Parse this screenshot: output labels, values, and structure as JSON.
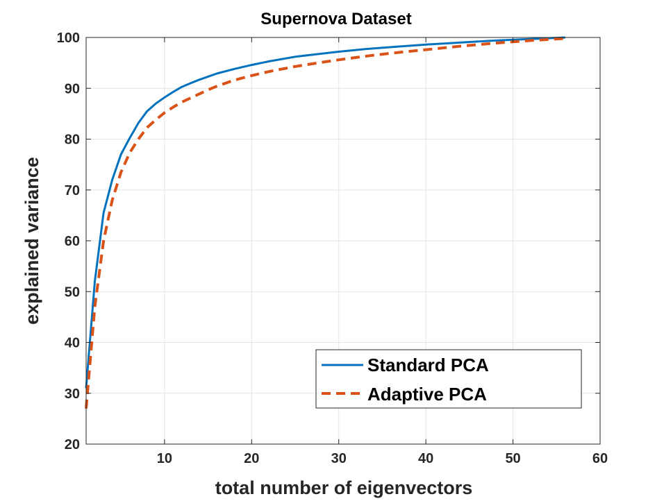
{
  "chart_data": {
    "type": "line",
    "title": "Supernova Dataset",
    "xlabel": "total number of eigenvectors",
    "ylabel": "explained variance",
    "xlim": [
      1,
      60
    ],
    "ylim": [
      20,
      100
    ],
    "xticks": [
      10,
      20,
      30,
      40,
      50,
      60
    ],
    "yticks": [
      20,
      30,
      40,
      50,
      60,
      70,
      80,
      90,
      100
    ],
    "grid": true,
    "legend_position": "bottom-right",
    "series": [
      {
        "name": "Standard PCA",
        "color": "#0072BD",
        "style": "solid",
        "x": [
          1,
          2,
          3,
          4,
          5,
          6,
          7,
          8,
          9,
          10,
          11,
          12,
          13,
          14,
          15,
          16,
          18,
          20,
          22,
          25,
          28,
          30,
          33,
          36,
          40,
          44,
          48,
          52,
          56
        ],
        "y": [
          31,
          52,
          65.5,
          72,
          77,
          80.2,
          83.2,
          85.5,
          87,
          88.2,
          89.3,
          90.3,
          91,
          91.7,
          92.3,
          92.9,
          93.8,
          94.6,
          95.3,
          96.2,
          96.8,
          97.2,
          97.7,
          98.1,
          98.6,
          99,
          99.4,
          99.7,
          100
        ]
      },
      {
        "name": "Adaptive PCA",
        "color": "#D95319",
        "style": "dashed",
        "x": [
          1,
          2,
          3,
          4,
          5,
          6,
          7,
          8,
          9,
          10,
          11,
          12,
          13,
          14,
          15,
          16,
          18,
          20,
          22,
          25,
          28,
          30,
          33,
          36,
          40,
          44,
          48,
          52,
          56
        ],
        "y": [
          27,
          47,
          60,
          68,
          73.5,
          77.3,
          80,
          82.3,
          83.8,
          85.2,
          86.3,
          87.3,
          88.1,
          88.9,
          89.7,
          90.4,
          91.6,
          92.5,
          93.3,
          94.3,
          95.1,
          95.6,
          96.3,
          96.9,
          97.6,
          98.3,
          98.9,
          99.4,
          99.8
        ]
      }
    ]
  }
}
